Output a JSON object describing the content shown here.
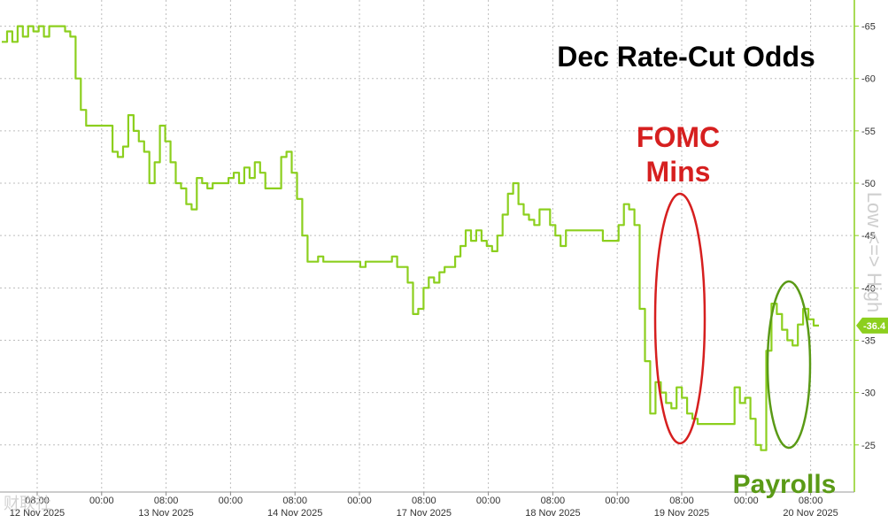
{
  "chart_data": {
    "type": "line",
    "title": "Dec Rate-Cut Odds",
    "y_axis_note": "Low <=> High",
    "ylim": [
      20.5,
      67.5
    ],
    "y_ticks": [
      25,
      30,
      35,
      40,
      45,
      50,
      55,
      60,
      65
    ],
    "y_tick_labels": [
      "-25",
      "-30",
      "-35",
      "-40",
      "-45",
      "-50",
      "-55",
      "-60",
      "-65"
    ],
    "last_value_label": "-36.4",
    "line_color": "#8ccf1e",
    "grid": true,
    "time_labels": [
      "08:00",
      "00:00",
      "08:00",
      "00:00",
      "08:00",
      "00:00",
      "08:00",
      "00:00",
      "08:00",
      "00:00",
      "08:00",
      "00:00",
      "08:00"
    ],
    "date_labels": [
      "12 Nov 2025",
      "13 Nov 2025",
      "14 Nov 2025",
      "17 Nov 2025",
      "18 Nov 2025",
      "19 Nov 2025",
      "20 Nov 2025"
    ],
    "series": [
      {
        "values": [
          63.5,
          64.5,
          63.5,
          65,
          64,
          65,
          64.5,
          65,
          64,
          65,
          65,
          65,
          64.5,
          64,
          60,
          57,
          55.5,
          55.5,
          55.5,
          55.5,
          55.5,
          53,
          52.5,
          53.5,
          56.5,
          55,
          54,
          53,
          50,
          52,
          55.5,
          54,
          52,
          50,
          49.5,
          48,
          47.5,
          50.5,
          50,
          49.5,
          50,
          50,
          50,
          50.5,
          51,
          50,
          51.5,
          50.5,
          52,
          51,
          49.5,
          49.5,
          49.5,
          52.5,
          53,
          51,
          48.5,
          45,
          42.5,
          42.5,
          43,
          42.5,
          42.5,
          42.5,
          42.5,
          42.5,
          42.5,
          42.5,
          42,
          42.5,
          42.5,
          42.5,
          42.5,
          42.5,
          43,
          42,
          42,
          40.5,
          37.5,
          38,
          40,
          41,
          40.5,
          41.5,
          42,
          42,
          43,
          44,
          45.5,
          44.5,
          45.5,
          44.5,
          44,
          43.5,
          45,
          47,
          49,
          50,
          48,
          47,
          46.5,
          46,
          47.5,
          47.5,
          46,
          45,
          44,
          45.5,
          45.5,
          45.5,
          45.5,
          45.5,
          45.5,
          45.5,
          44.5,
          44.5,
          44.5,
          46,
          48,
          47.5,
          46,
          38,
          33,
          28,
          31,
          30,
          29,
          28.5,
          30.5,
          29.5,
          28,
          27.5,
          27,
          27,
          27,
          27,
          27,
          27,
          27,
          30.5,
          29,
          29.5,
          27.5,
          25,
          24.5,
          34,
          38.5,
          37.5,
          36,
          35,
          34.5,
          36.5,
          38,
          37,
          36.4,
          36.4
        ]
      }
    ],
    "annotations": [
      {
        "text": "FOMC",
        "color": "#d61f1f"
      },
      {
        "text": "Mins",
        "color": "#d61f1f"
      },
      {
        "text": "Payrolls",
        "color": "#5a9a16"
      }
    ],
    "watermark": "财联社"
  }
}
